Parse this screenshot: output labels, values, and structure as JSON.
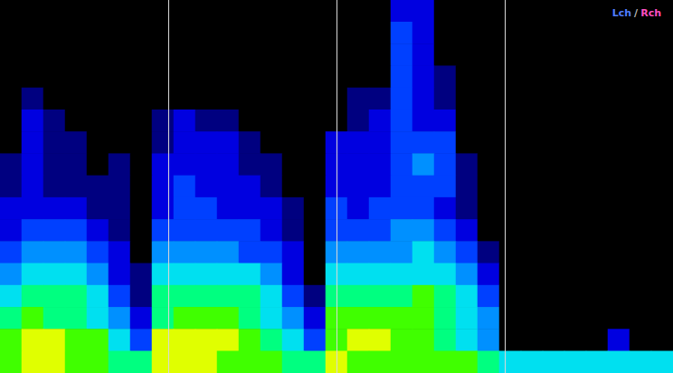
{
  "chart_data": {
    "type": "heatmap",
    "annotations": [
      {
        "text": "Lch",
        "color": "#4f7dff"
      },
      {
        "text": "/",
        "color": "#bbbbbb"
      },
      {
        "text": "Rch",
        "color": "#ff4fc0"
      }
    ],
    "tick_labels": false,
    "grid": false,
    "xlim": [
      0,
      4
    ],
    "markers": [
      1,
      2,
      3
    ],
    "color_range": [
      0,
      9
    ],
    "cells": [
      [
        0,
        0,
        0,
        0,
        0,
        0,
        0,
        0,
        0,
        0,
        0,
        0,
        0,
        0,
        0,
        0,
        0,
        0,
        2,
        2,
        0,
        0,
        0,
        0,
        0,
        0,
        0,
        0,
        0,
        0,
        0
      ],
      [
        0,
        0,
        0,
        0,
        0,
        0,
        0,
        0,
        0,
        0,
        0,
        0,
        0,
        0,
        0,
        0,
        0,
        0,
        3,
        2,
        0,
        0,
        0,
        0,
        0,
        0,
        0,
        0,
        0,
        0,
        0
      ],
      [
        0,
        0,
        0,
        0,
        0,
        0,
        0,
        0,
        0,
        0,
        0,
        0,
        0,
        0,
        0,
        0,
        0,
        0,
        3,
        2,
        0,
        0,
        0,
        0,
        0,
        0,
        0,
        0,
        0,
        0,
        0
      ],
      [
        0,
        0,
        0,
        0,
        0,
        0,
        0,
        0,
        0,
        0,
        0,
        0,
        0,
        0,
        0,
        0,
        0,
        0,
        3,
        2,
        1,
        0,
        0,
        0,
        0,
        0,
        0,
        0,
        0,
        0,
        0
      ],
      [
        0,
        1,
        0,
        0,
        0,
        0,
        0,
        0,
        0,
        0,
        0,
        0,
        0,
        0,
        0,
        0,
        1,
        1,
        3,
        2,
        1,
        0,
        0,
        0,
        0,
        0,
        0,
        0,
        0,
        0,
        0
      ],
      [
        0,
        2,
        1,
        0,
        0,
        0,
        0,
        1,
        2,
        1,
        1,
        0,
        0,
        0,
        0,
        0,
        1,
        2,
        3,
        2,
        2,
        0,
        0,
        0,
        0,
        0,
        0,
        0,
        0,
        0,
        0
      ],
      [
        0,
        2,
        1,
        1,
        0,
        0,
        0,
        1,
        2,
        2,
        2,
        1,
        0,
        0,
        0,
        2,
        2,
        2,
        3,
        3,
        3,
        0,
        0,
        0,
        0,
        0,
        0,
        0,
        0,
        0,
        0
      ],
      [
        1,
        2,
        1,
        1,
        0,
        1,
        0,
        2,
        2,
        2,
        2,
        1,
        1,
        0,
        0,
        2,
        2,
        2,
        3,
        4,
        3,
        1,
        0,
        0,
        0,
        0,
        0,
        0,
        0,
        0,
        0
      ],
      [
        1,
        2,
        1,
        1,
        1,
        1,
        0,
        2,
        3,
        2,
        2,
        2,
        1,
        0,
        0,
        2,
        2,
        2,
        3,
        3,
        3,
        1,
        0,
        0,
        0,
        0,
        0,
        0,
        0,
        0,
        0
      ],
      [
        2,
        2,
        2,
        2,
        1,
        1,
        0,
        2,
        3,
        3,
        2,
        2,
        2,
        1,
        0,
        3,
        2,
        3,
        3,
        3,
        2,
        1,
        0,
        0,
        0,
        0,
        0,
        0,
        0,
        0,
        0
      ],
      [
        2,
        3,
        3,
        3,
        2,
        1,
        0,
        3,
        3,
        3,
        3,
        3,
        2,
        1,
        0,
        3,
        3,
        3,
        4,
        4,
        3,
        2,
        0,
        0,
        0,
        0,
        0,
        0,
        0,
        0,
        0
      ],
      [
        3,
        4,
        4,
        4,
        3,
        2,
        0,
        4,
        4,
        4,
        4,
        3,
        3,
        2,
        0,
        4,
        4,
        4,
        4,
        5,
        4,
        3,
        1,
        0,
        0,
        0,
        0,
        0,
        0,
        0,
        0
      ],
      [
        4,
        5,
        5,
        5,
        4,
        2,
        1,
        5,
        5,
        5,
        5,
        5,
        4,
        2,
        0,
        5,
        5,
        5,
        5,
        5,
        5,
        4,
        2,
        0,
        0,
        0,
        0,
        0,
        0,
        0,
        0
      ],
      [
        5,
        6,
        6,
        6,
        5,
        3,
        1,
        6,
        6,
        6,
        6,
        6,
        5,
        3,
        1,
        6,
        6,
        6,
        6,
        7,
        6,
        5,
        3,
        0,
        0,
        0,
        0,
        0,
        0,
        0,
        0
      ],
      [
        6,
        7,
        6,
        6,
        5,
        4,
        2,
        6,
        7,
        7,
        7,
        6,
        5,
        4,
        2,
        7,
        7,
        7,
        7,
        7,
        6,
        5,
        4,
        0,
        0,
        0,
        0,
        0,
        0,
        0,
        0
      ],
      [
        7,
        8,
        8,
        7,
        7,
        5,
        3,
        8,
        8,
        8,
        8,
        7,
        6,
        5,
        3,
        7,
        8,
        8,
        7,
        7,
        6,
        5,
        4,
        0,
        0,
        0,
        0,
        0,
        2,
        0,
        0
      ],
      [
        7,
        8,
        8,
        7,
        7,
        6,
        6,
        8,
        8,
        8,
        7,
        7,
        7,
        6,
        6,
        8,
        7,
        7,
        7,
        7,
        7,
        7,
        6,
        5,
        5,
        5,
        5,
        5,
        5,
        5,
        5
      ]
    ]
  }
}
